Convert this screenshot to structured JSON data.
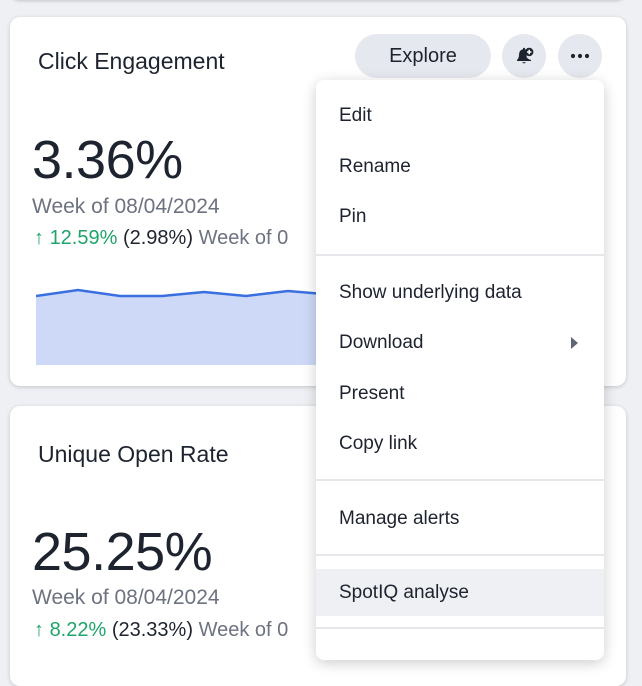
{
  "cards": [
    {
      "title": "Click Engagement",
      "value": "3.36%",
      "period": "Week of 08/04/2024",
      "change_pct": "12.59%",
      "change_abs": "(2.98%)",
      "change_period": "Week of 0",
      "sparkline_color": "#3a6fe0",
      "sparkline_fill": "#cdd9f7"
    },
    {
      "title": "Unique Open Rate",
      "value": "25.25%",
      "period": "Week of 08/04/2024",
      "change_pct": "8.22%",
      "change_abs": "(23.33%)",
      "change_period": "Week of 0"
    }
  ],
  "toolbar": {
    "explore_label": "Explore",
    "alert_icon": "bell-plus-icon",
    "more_icon": "ellipsis-icon"
  },
  "menu": {
    "items": [
      {
        "label": "Edit"
      },
      {
        "label": "Rename"
      },
      {
        "label": "Pin"
      },
      {
        "label": "Show underlying data"
      },
      {
        "label": "Download",
        "has_submenu": true
      },
      {
        "label": "Present"
      },
      {
        "label": "Copy link"
      },
      {
        "label": "Manage alerts"
      },
      {
        "label": "SpotIQ analyse",
        "highlighted": true
      }
    ]
  },
  "colors": {
    "positive": "#1fa56b",
    "muted_text": "#6d7280",
    "button_bg": "#e5e8ee"
  }
}
